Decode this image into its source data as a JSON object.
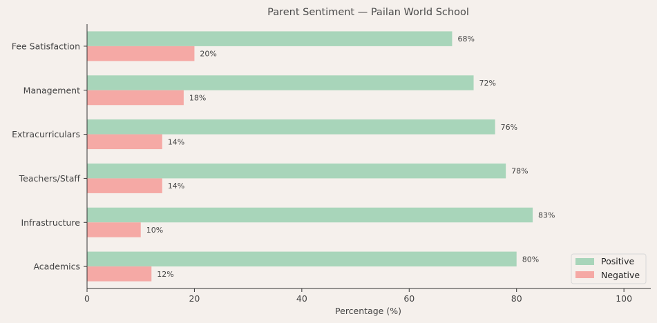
{
  "chart_data": {
    "type": "bar",
    "orientation": "horizontal",
    "title": "Parent Sentiment — Pailan World School",
    "xlabel": "Percentage (%)",
    "ylabel": "",
    "xlim": [
      0,
      105
    ],
    "xticks": [
      0,
      20,
      40,
      60,
      80,
      100
    ],
    "categories": [
      "Fee Satisfaction",
      "Management",
      "Extracurriculars",
      "Teachers/Staff",
      "Infrastructure",
      "Academics"
    ],
    "series": [
      {
        "name": "Positive",
        "color": "#a8d5ba",
        "values": [
          68,
          72,
          76,
          78,
          83,
          80
        ]
      },
      {
        "name": "Negative",
        "color": "#f5a9a5",
        "values": [
          20,
          18,
          14,
          14,
          10,
          12
        ]
      }
    ],
    "value_suffix": "%",
    "grid": false,
    "legend_position": "lower-right"
  }
}
